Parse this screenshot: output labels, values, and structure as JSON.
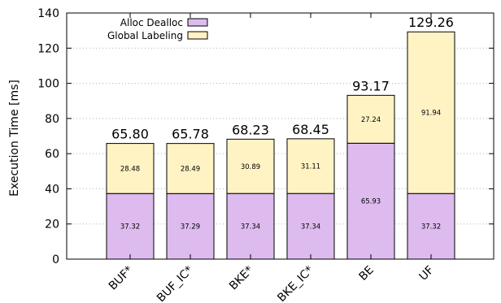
{
  "chart_data": {
    "type": "bar",
    "stacked": true,
    "categories": [
      "BUF*",
      "BUF_IC*",
      "BKE*",
      "BKE_IC*",
      "BE",
      "UF"
    ],
    "series": [
      {
        "name": "Alloc Dealloc",
        "values": [
          37.32,
          37.29,
          37.34,
          37.34,
          65.93,
          37.32
        ],
        "labels": [
          "37.32",
          "37.29",
          "37.34",
          "37.34",
          "65.93",
          "37.32"
        ],
        "color": "#ddbbee"
      },
      {
        "name": "Global Labeling",
        "values": [
          28.48,
          28.49,
          30.89,
          31.11,
          27.24,
          91.94
        ],
        "labels": [
          "28.48",
          "28.49",
          "30.89",
          "31.11",
          "27.24",
          "91.94"
        ],
        "color": "#fff3c4"
      }
    ],
    "totals": [
      "65.80",
      "65.78",
      "68.23",
      "68.45",
      "93.17",
      "129.26"
    ],
    "title": "",
    "xlabel": "",
    "ylabel": "Execution Time [ms]",
    "ylim": [
      0,
      140
    ],
    "yticks": [
      "0",
      "20",
      "40",
      "60",
      "80",
      "100",
      "120",
      "140"
    ],
    "grid": "horizontal dotted",
    "legend_position": "top-left"
  }
}
